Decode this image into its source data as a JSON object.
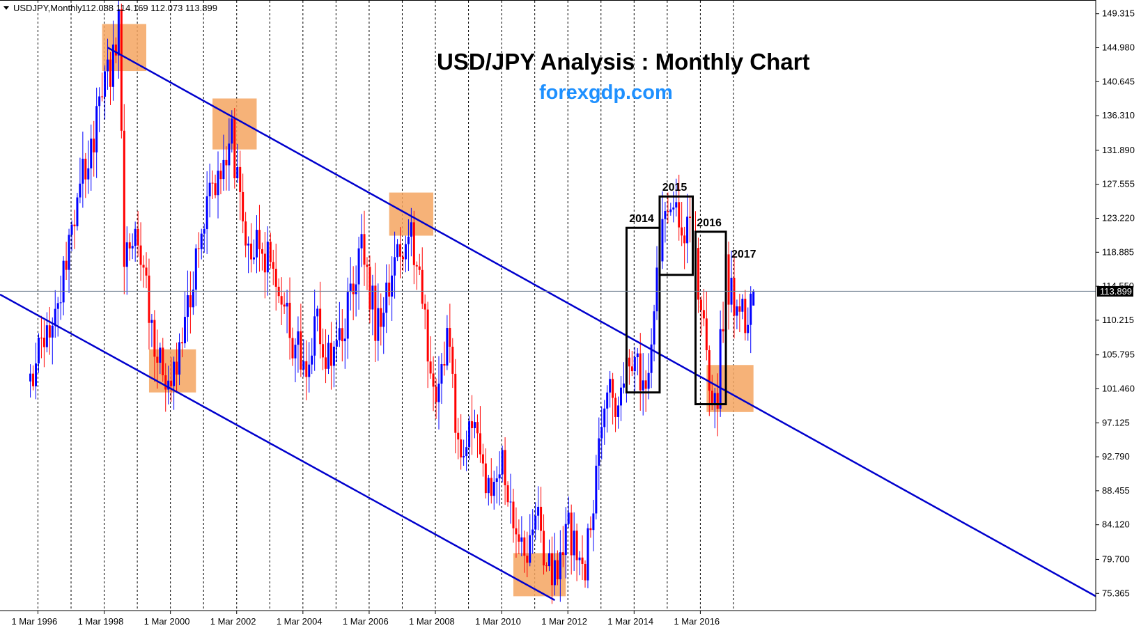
{
  "chart_header": {
    "symbol_label": "USDJPY,Monthly",
    "ohlc": "112.088 114.169 112.073 113.899",
    "menu_icon": "triangle-down-icon"
  },
  "title": "USD/JPY Analysis : Monthly Chart",
  "website": "forexgdp.com",
  "colors": {
    "bull": "#0000ff",
    "bear": "#ff0000",
    "channel": "#0000cd",
    "zone": "#f4a460",
    "grid": "#000000",
    "price_line": "#708090",
    "tag_bg": "#000000",
    "site": "#1e90ff"
  },
  "chart_data": {
    "type": "candlestick",
    "symbol": "USDJPY",
    "timeframe": "Monthly",
    "x_ticks": [
      "1 Mar 1996",
      "1 Mar 1998",
      "1 Mar 2000",
      "1 Mar 2002",
      "1 Mar 2004",
      "1 Mar 2006",
      "1 Mar 2008",
      "1 Mar 2010",
      "1 Mar 2012",
      "1 Mar 2014",
      "1 Mar 2016"
    ],
    "y_ticks": [
      "149.315",
      "144.980",
      "140.645",
      "136.310",
      "131.890",
      "127.555",
      "123.220",
      "118.885",
      "114.550",
      "110.215",
      "105.795",
      "101.460",
      "97.125",
      "92.790",
      "88.455",
      "84.120",
      "79.700",
      "75.365"
    ],
    "ylim": [
      74.5,
      150.0
    ],
    "x_range": [
      "Jan 1995",
      "Feb 2028"
    ],
    "current_price": "113.899",
    "last_ohlc": {
      "open": 112.088,
      "high": 114.169,
      "low": 112.073,
      "close": 113.899
    },
    "anchors": [
      {
        "date": "1995-12",
        "price": 104
      },
      {
        "date": "1996-08",
        "price": 110
      },
      {
        "date": "1997-05",
        "price": 126
      },
      {
        "date": "1998-08",
        "price": 147
      },
      {
        "date": "1998-10",
        "price": 118
      },
      {
        "date": "1999-03",
        "price": 120
      },
      {
        "date": "1999-12",
        "price": 102
      },
      {
        "date": "2000-06",
        "price": 107
      },
      {
        "date": "2001-04",
        "price": 125
      },
      {
        "date": "2002-01",
        "price": 134
      },
      {
        "date": "2002-06",
        "price": 119
      },
      {
        "date": "2003-03",
        "price": 119
      },
      {
        "date": "2003-10",
        "price": 109
      },
      {
        "date": "2004-04",
        "price": 105
      },
      {
        "date": "2004-08",
        "price": 110
      },
      {
        "date": "2005-01",
        "price": 103
      },
      {
        "date": "2005-12",
        "price": 119
      },
      {
        "date": "2006-05",
        "price": 110
      },
      {
        "date": "2007-06",
        "price": 123
      },
      {
        "date": "2007-08",
        "price": 116
      },
      {
        "date": "2008-03",
        "price": 100
      },
      {
        "date": "2008-07",
        "price": 108
      },
      {
        "date": "2008-12",
        "price": 90
      },
      {
        "date": "2009-04",
        "price": 98
      },
      {
        "date": "2009-11",
        "price": 87
      },
      {
        "date": "2010-03",
        "price": 93
      },
      {
        "date": "2010-10",
        "price": 81
      },
      {
        "date": "2011-04",
        "price": 84
      },
      {
        "date": "2011-10",
        "price": 77
      },
      {
        "date": "2012-03",
        "price": 83
      },
      {
        "date": "2012-09",
        "price": 78
      },
      {
        "date": "2013-05",
        "price": 101
      },
      {
        "date": "2013-08",
        "price": 98
      },
      {
        "date": "2013-12",
        "price": 105
      },
      {
        "date": "2014-07",
        "price": 102
      },
      {
        "date": "2014-12",
        "price": 120
      },
      {
        "date": "2015-06",
        "price": 124
      },
      {
        "date": "2015-12",
        "price": 120
      },
      {
        "date": "2016-06",
        "price": 103
      },
      {
        "date": "2016-09",
        "price": 101
      },
      {
        "date": "2016-12",
        "price": 117
      },
      {
        "date": "2017-03",
        "price": 111
      },
      {
        "date": "2017-05",
        "price": 111
      },
      {
        "date": "2017-06",
        "price": 112
      },
      {
        "date": "2017-07",
        "price": 110
      },
      {
        "date": "2017-09",
        "price": 112
      },
      {
        "date": "2017-10",
        "price": 113.899
      }
    ],
    "trendlines": [
      {
        "name": "upper-channel",
        "from": {
          "date": "1998-04",
          "price": 145.0
        },
        "to": {
          "date": "2028-02",
          "price": 75.0
        }
      },
      {
        "name": "lower-channel",
        "from": {
          "date": "1995-01",
          "price": 113.5
        },
        "to": {
          "date": "2011-10",
          "price": 74.5
        }
      }
    ],
    "support_resistance_zones": [
      {
        "from": "1998-02",
        "to": "1999-06",
        "low": 142.0,
        "high": 148.0
      },
      {
        "from": "1999-07",
        "to": "2000-12",
        "low": 101.0,
        "high": 106.5
      },
      {
        "from": "2001-06",
        "to": "2002-10",
        "low": 132.0,
        "high": 138.5
      },
      {
        "from": "2006-10",
        "to": "2008-02",
        "low": 121.0,
        "high": 126.5
      },
      {
        "from": "2010-07",
        "to": "2012-02",
        "low": 75.0,
        "high": 80.5
      },
      {
        "from": "2016-05",
        "to": "2017-10",
        "low": 98.5,
        "high": 104.5
      }
    ],
    "year_boxes": [
      {
        "label": "2014",
        "from": "2013-12",
        "to": "2014-12",
        "low": 101.0,
        "high": 122.0
      },
      {
        "label": "2015",
        "from": "2014-12",
        "to": "2015-12",
        "low": 116.0,
        "high": 126.0
      },
      {
        "label": "2016",
        "from": "2016-01",
        "to": "2016-12",
        "low": 99.5,
        "high": 121.5
      },
      {
        "label": "2017",
        "from": "2017-02",
        "to": "2017-02",
        "low": 117.5,
        "high": 117.5
      }
    ]
  }
}
